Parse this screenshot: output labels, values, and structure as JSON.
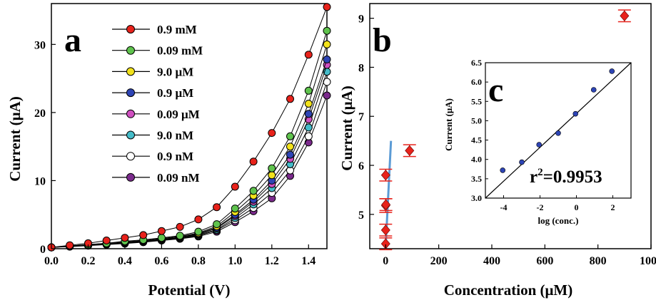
{
  "chart_data": [
    {
      "panel": "a",
      "type": "line",
      "title": "",
      "xlabel": "Potential (V)",
      "ylabel": "Current (μA)",
      "xlim": [
        0,
        1.5
      ],
      "ylim": [
        0,
        36
      ],
      "xticks": [
        "0.0",
        "0.2",
        "0.4",
        "0.6",
        "0.8",
        "1.0",
        "1.2",
        "1.4"
      ],
      "yticks": [
        "0",
        "10",
        "20",
        "30"
      ],
      "grid": false,
      "legend_position": "top-left",
      "x": [
        0,
        0.1,
        0.2,
        0.3,
        0.4,
        0.5,
        0.6,
        0.7,
        0.8,
        0.9,
        1.0,
        1.1,
        1.2,
        1.3,
        1.4,
        1.5
      ],
      "series": [
        {
          "name": "0.9 mM",
          "color": "#e8221b",
          "values": [
            0.2,
            0.5,
            0.8,
            1.2,
            1.6,
            2.0,
            2.6,
            3.2,
            4.3,
            6.1,
            9.1,
            12.8,
            17.0,
            22.0,
            28.5,
            35.5
          ]
        },
        {
          "name": "0.09 mM",
          "color": "#5fc34d",
          "values": [
            0.2,
            0.4,
            0.6,
            0.8,
            1.1,
            1.3,
            1.6,
            1.9,
            2.5,
            3.6,
            5.9,
            8.5,
            11.8,
            16.5,
            23.2,
            32.0
          ]
        },
        {
          "name": "9.0 μM",
          "color": "#f2e21b",
          "values": [
            0.2,
            0.4,
            0.6,
            0.8,
            1.0,
            1.2,
            1.5,
            1.8,
            2.3,
            3.3,
            5.4,
            7.8,
            10.8,
            15.0,
            21.3,
            30.0
          ]
        },
        {
          "name": "0.9 μM",
          "color": "#2d44b5",
          "values": [
            0.2,
            0.4,
            0.55,
            0.7,
            0.9,
            1.1,
            1.4,
            1.7,
            2.2,
            3.1,
            5.0,
            7.2,
            10.0,
            13.8,
            19.8,
            27.8
          ]
        },
        {
          "name": "0.09 μM",
          "color": "#cf4fc0",
          "values": [
            0.2,
            0.35,
            0.5,
            0.7,
            0.9,
            1.1,
            1.35,
            1.65,
            2.1,
            3.0,
            4.8,
            6.9,
            9.5,
            13.2,
            19.0,
            27.0
          ]
        },
        {
          "name": "9.0 nM",
          "color": "#45bcc9",
          "values": [
            0.2,
            0.35,
            0.5,
            0.65,
            0.85,
            1.05,
            1.3,
            1.6,
            2.0,
            2.8,
            4.5,
            6.5,
            8.9,
            12.4,
            17.8,
            26.0
          ]
        },
        {
          "name": "0.9 nM",
          "color": "#ffffff",
          "values": [
            0.2,
            0.35,
            0.5,
            0.65,
            0.8,
            1.0,
            1.25,
            1.5,
            1.9,
            2.7,
            4.2,
            6.0,
            8.2,
            11.5,
            16.5,
            24.5
          ]
        },
        {
          "name": "0.09 nM",
          "color": "#7b2a8c",
          "values": [
            0.2,
            0.3,
            0.45,
            0.6,
            0.75,
            0.95,
            1.2,
            1.45,
            1.8,
            2.5,
            3.9,
            5.5,
            7.4,
            10.7,
            15.6,
            22.5
          ]
        }
      ]
    },
    {
      "panel": "b",
      "type": "scatter",
      "title": "",
      "xlabel": "Concentration (μM)",
      "ylabel": "Current (μA)",
      "xlim": [
        -60,
        1000
      ],
      "ylim": [
        4.3,
        9.3
      ],
      "xticks": [
        "0",
        "200",
        "400",
        "600",
        "800",
        "1000"
      ],
      "yticks": [
        "5",
        "6",
        "7",
        "8",
        "9"
      ],
      "grid": false,
      "points": [
        {
          "x": 9e-05,
          "y": 4.4,
          "err": 0.12
        },
        {
          "x": 0.0009,
          "y": 4.68,
          "err": 0.12
        },
        {
          "x": 0.009,
          "y": 5.18,
          "err": 0.14
        },
        {
          "x": 0.09,
          "y": 5.8,
          "err": 0.12
        },
        {
          "x": 0.9,
          "y": 5.2,
          "err": 0.12
        },
        {
          "x": 90,
          "y": 6.3,
          "err": 0.12
        },
        {
          "x": 900,
          "y": 9.05,
          "err": 0.12
        }
      ],
      "marker_color": "#e8221b",
      "fit_line_color": "#5b9bd5",
      "fit_line": {
        "x": [
          0,
          20
        ],
        "y": [
          4.35,
          6.5
        ]
      }
    },
    {
      "panel": "c",
      "type": "scatter",
      "title": "",
      "xlabel": "log (conc.)",
      "ylabel": "Current (μA)",
      "xlim": [
        -5,
        3
      ],
      "ylim": [
        3.0,
        6.5
      ],
      "xticks": [
        "-4",
        "-2",
        "0",
        "2"
      ],
      "yticks": [
        "3.0",
        "3.5",
        "4.0",
        "4.5",
        "5.0",
        "5.5",
        "6.0",
        "6.5"
      ],
      "grid": false,
      "annotation": "r2=0.9953",
      "points": [
        {
          "x": -4.05,
          "y": 3.72
        },
        {
          "x": -3.0,
          "y": 3.93
        },
        {
          "x": -2.05,
          "y": 4.38
        },
        {
          "x": -1.0,
          "y": 4.68
        },
        {
          "x": -0.05,
          "y": 5.18
        },
        {
          "x": 0.95,
          "y": 5.8
        },
        {
          "x": 1.95,
          "y": 6.28
        }
      ],
      "marker_color": "#2d44b5",
      "fit_line": {
        "x": [
          -5,
          3
        ],
        "y": [
          3.0,
          6.5
        ]
      }
    }
  ],
  "labels": {
    "a": "a",
    "b": "b",
    "c": "c",
    "r2_prefix": "r",
    "r2_exp": "2",
    "r2_value": "=0.9953"
  }
}
